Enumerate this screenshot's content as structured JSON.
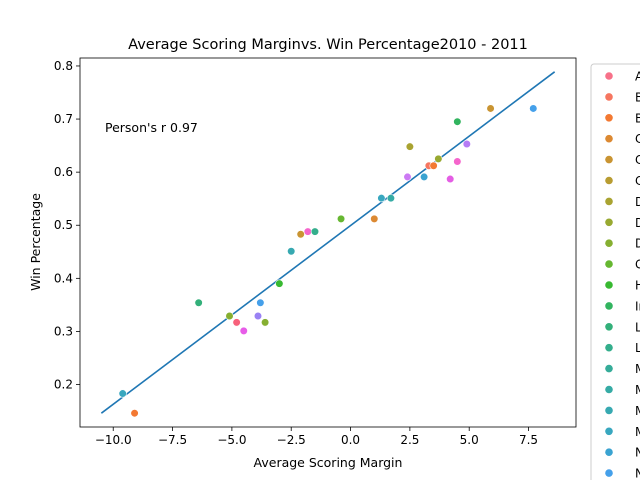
{
  "chart_data": {
    "type": "scatter",
    "title": "Average Scoring Marginvs. Win Percentage2010 - 2011",
    "xlabel": "Average Scoring Margin",
    "ylabel": "Win Percentage",
    "xlim": [
      -11.4,
      9.5
    ],
    "ylim": [
      0.12,
      0.815
    ],
    "xticks": [
      -10.0,
      -7.5,
      -5.0,
      -2.5,
      0.0,
      2.5,
      5.0,
      7.5
    ],
    "xtick_labels": [
      "−10.0",
      "−7.5",
      "−5.0",
      "−2.5",
      "0.0",
      "2.5",
      "5.0",
      "7.5"
    ],
    "yticks": [
      0.2,
      0.3,
      0.4,
      0.5,
      0.6,
      0.7,
      0.8
    ],
    "ytick_labels": [
      "0.2",
      "0.3",
      "0.4",
      "0.5",
      "0.6",
      "0.7",
      "0.8"
    ],
    "grid": false,
    "annotation": "Person's r 0.97",
    "regression_line": {
      "x": [
        -10.5,
        8.6
      ],
      "y": [
        0.146,
        0.789
      ],
      "color": "#1f77b4"
    },
    "legend": {
      "placement": "outside-right",
      "entries": [
        {
          "label": "A",
          "color": "#f77189"
        },
        {
          "label": "B",
          "color": "#f67660"
        },
        {
          "label": "B",
          "color": "#f37932"
        },
        {
          "label": "C",
          "color": "#dc8932"
        },
        {
          "label": "C",
          "color": "#c99432"
        },
        {
          "label": "C",
          "color": "#b89c31"
        },
        {
          "label": "D",
          "color": "#a9a331"
        },
        {
          "label": "D",
          "color": "#98a931"
        },
        {
          "label": "D",
          "color": "#86af31"
        },
        {
          "label": "G",
          "color": "#66b731"
        },
        {
          "label": "H",
          "color": "#38b931"
        },
        {
          "label": "In",
          "color": "#32b45f"
        },
        {
          "label": "L",
          "color": "#33b07a"
        },
        {
          "label": "L",
          "color": "#34ae8c"
        },
        {
          "label": "M",
          "color": "#35ac99"
        },
        {
          "label": "M",
          "color": "#36aba5"
        },
        {
          "label": "M",
          "color": "#37a9b1"
        },
        {
          "label": "M",
          "color": "#38a7bf"
        },
        {
          "label": "N",
          "color": "#3aa3d1"
        },
        {
          "label": "N",
          "color": "#45a0ea"
        }
      ]
    },
    "points": [
      {
        "x": -9.1,
        "y": 0.146,
        "color": "#f37932"
      },
      {
        "x": -9.6,
        "y": 0.183,
        "color": "#38a7bf"
      },
      {
        "x": -6.4,
        "y": 0.354,
        "color": "#33b07a"
      },
      {
        "x": -5.1,
        "y": 0.329,
        "color": "#86af31"
      },
      {
        "x": -4.8,
        "y": 0.317,
        "color": "#f7617b"
      },
      {
        "x": -4.5,
        "y": 0.301,
        "color": "#e75ce8"
      },
      {
        "x": -3.9,
        "y": 0.329,
        "color": "#9a82f4"
      },
      {
        "x": -3.8,
        "y": 0.354,
        "color": "#45a0ea"
      },
      {
        "x": -3.6,
        "y": 0.317,
        "color": "#86af31"
      },
      {
        "x": -3.0,
        "y": 0.39,
        "color": "#38b931"
      },
      {
        "x": -2.5,
        "y": 0.451,
        "color": "#37a9b1"
      },
      {
        "x": -2.1,
        "y": 0.483,
        "color": "#c99432"
      },
      {
        "x": -1.8,
        "y": 0.488,
        "color": "#f565cc"
      },
      {
        "x": -1.5,
        "y": 0.488,
        "color": "#34ae8c"
      },
      {
        "x": -0.4,
        "y": 0.512,
        "color": "#66b731"
      },
      {
        "x": 1.0,
        "y": 0.512,
        "color": "#dc8932"
      },
      {
        "x": 1.3,
        "y": 0.551,
        "color": "#38a7bf"
      },
      {
        "x": 1.7,
        "y": 0.551,
        "color": "#36aba5"
      },
      {
        "x": 2.4,
        "y": 0.591,
        "color": "#cc7af4"
      },
      {
        "x": 2.5,
        "y": 0.648,
        "color": "#a9a331"
      },
      {
        "x": 3.1,
        "y": 0.591,
        "color": "#3aa3d1"
      },
      {
        "x": 3.3,
        "y": 0.612,
        "color": "#f67660"
      },
      {
        "x": 3.5,
        "y": 0.612,
        "color": "#f37932"
      },
      {
        "x": 3.7,
        "y": 0.625,
        "color": "#98a931"
      },
      {
        "x": 4.2,
        "y": 0.587,
        "color": "#e45ee4"
      },
      {
        "x": 4.5,
        "y": 0.62,
        "color": "#f565cc"
      },
      {
        "x": 4.5,
        "y": 0.695,
        "color": "#32b45f"
      },
      {
        "x": 4.9,
        "y": 0.653,
        "color": "#b67cf5"
      },
      {
        "x": 5.9,
        "y": 0.72,
        "color": "#c99432"
      },
      {
        "x": 7.7,
        "y": 0.72,
        "color": "#45a0ea"
      }
    ]
  }
}
